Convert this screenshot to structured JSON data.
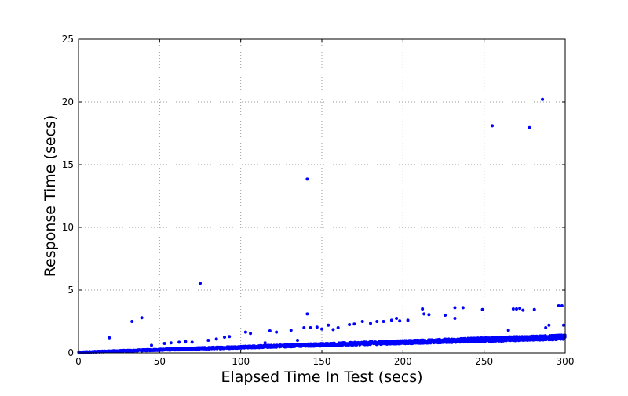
{
  "chart_data": {
    "type": "scatter",
    "xlabel": "Elapsed Time In Test (secs)",
    "ylabel": "Response Time (secs)",
    "xlim": [
      0,
      300
    ],
    "ylim": [
      0,
      25
    ],
    "xticks": [
      0,
      50,
      100,
      150,
      200,
      250,
      300
    ],
    "yticks": [
      0,
      5,
      10,
      15,
      20,
      25
    ],
    "grid": true,
    "marker_color": "#0000ff",
    "baseline_trend": {
      "description_x_range": [
        0,
        300
      ],
      "approx_y_at_x0": 0.05,
      "approx_y_at_x300": 1.25
    },
    "outliers": [
      {
        "x": 19,
        "y": 1.2
      },
      {
        "x": 33,
        "y": 2.5
      },
      {
        "x": 39,
        "y": 2.8
      },
      {
        "x": 45,
        "y": 0.6
      },
      {
        "x": 53,
        "y": 0.75
      },
      {
        "x": 57,
        "y": 0.8
      },
      {
        "x": 62,
        "y": 0.85
      },
      {
        "x": 66,
        "y": 0.9
      },
      {
        "x": 70,
        "y": 0.85
      },
      {
        "x": 75,
        "y": 5.55
      },
      {
        "x": 80,
        "y": 1.0
      },
      {
        "x": 85,
        "y": 1.1
      },
      {
        "x": 90,
        "y": 1.25
      },
      {
        "x": 93,
        "y": 1.3
      },
      {
        "x": 103,
        "y": 1.65
      },
      {
        "x": 106,
        "y": 1.55
      },
      {
        "x": 115,
        "y": 0.8
      },
      {
        "x": 118,
        "y": 1.75
      },
      {
        "x": 122,
        "y": 1.65
      },
      {
        "x": 131,
        "y": 1.8
      },
      {
        "x": 135,
        "y": 1.0
      },
      {
        "x": 139,
        "y": 2.0
      },
      {
        "x": 141,
        "y": 13.85
      },
      {
        "x": 141,
        "y": 3.1
      },
      {
        "x": 143,
        "y": 2.0
      },
      {
        "x": 147,
        "y": 2.05
      },
      {
        "x": 150,
        "y": 1.9
      },
      {
        "x": 154,
        "y": 2.2
      },
      {
        "x": 157,
        "y": 1.85
      },
      {
        "x": 160,
        "y": 2.0
      },
      {
        "x": 167,
        "y": 2.25
      },
      {
        "x": 170,
        "y": 2.3
      },
      {
        "x": 175,
        "y": 2.5
      },
      {
        "x": 180,
        "y": 2.35
      },
      {
        "x": 184,
        "y": 2.5
      },
      {
        "x": 188,
        "y": 2.5
      },
      {
        "x": 193,
        "y": 2.6
      },
      {
        "x": 196,
        "y": 2.75
      },
      {
        "x": 198,
        "y": 2.55
      },
      {
        "x": 203,
        "y": 2.6
      },
      {
        "x": 212,
        "y": 3.5
      },
      {
        "x": 213,
        "y": 3.1
      },
      {
        "x": 216,
        "y": 3.05
      },
      {
        "x": 226,
        "y": 3.0
      },
      {
        "x": 232,
        "y": 3.6
      },
      {
        "x": 232,
        "y": 2.75
      },
      {
        "x": 237,
        "y": 3.6
      },
      {
        "x": 249,
        "y": 3.45
      },
      {
        "x": 255,
        "y": 18.1
      },
      {
        "x": 265,
        "y": 1.8
      },
      {
        "x": 268,
        "y": 3.5
      },
      {
        "x": 270,
        "y": 3.5
      },
      {
        "x": 272,
        "y": 3.55
      },
      {
        "x": 274,
        "y": 3.4
      },
      {
        "x": 278,
        "y": 17.95
      },
      {
        "x": 281,
        "y": 3.45
      },
      {
        "x": 286,
        "y": 20.2
      },
      {
        "x": 288,
        "y": 2.0
      },
      {
        "x": 290,
        "y": 2.2
      },
      {
        "x": 296,
        "y": 3.75
      },
      {
        "x": 298,
        "y": 3.75
      },
      {
        "x": 299,
        "y": 2.2
      }
    ]
  }
}
